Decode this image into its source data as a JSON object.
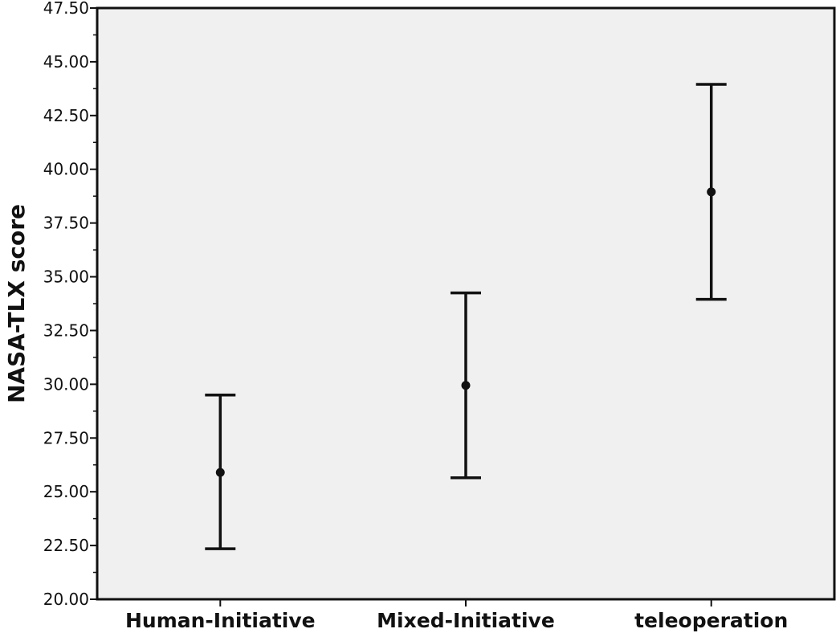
{
  "chart_data": {
    "type": "errorbar",
    "title": "",
    "xlabel": "",
    "ylabel": "NASA-TLX score",
    "ylim": [
      20.0,
      47.5
    ],
    "yticks": [
      "20.00",
      "22.50",
      "25.00",
      "27.50",
      "30.00",
      "32.50",
      "35.00",
      "37.50",
      "40.00",
      "42.50",
      "45.00",
      "47.50"
    ],
    "categories": [
      "Human-Initiative",
      "Mixed-Initiative",
      "teleoperation"
    ],
    "means": [
      25.9,
      29.95,
      38.95
    ],
    "upper": [
      29.5,
      34.25,
      43.95
    ],
    "lower": [
      22.35,
      25.65,
      33.95
    ],
    "grid": false,
    "legend": "none",
    "colors": {
      "background": "#f0f0f0",
      "ink": "#111111"
    }
  }
}
